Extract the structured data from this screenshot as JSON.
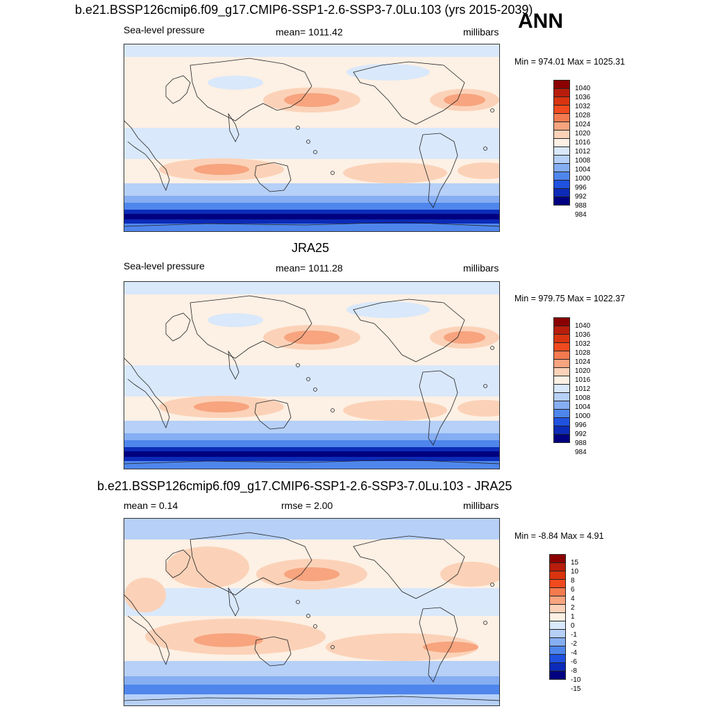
{
  "header": {
    "title": "b.e21.BSSP126cmip6.f09_g17.CMIP6-SSP1-2.6-SSP3-7.0Lu.103 (yrs 2015-2039)",
    "season": "ANN"
  },
  "panels": [
    {
      "id": "model",
      "title": "",
      "left_label": "Sea-level pressure",
      "center_label": "mean= 1011.42",
      "right_label": "millibars",
      "minmax": "Min = 974.01 Max = 1025.31",
      "levels": [
        "1040",
        "1036",
        "1032",
        "1028",
        "1024",
        "1020",
        "1016",
        "1012",
        "1008",
        "1004",
        "1000",
        "996",
        "992",
        "988",
        "984"
      ]
    },
    {
      "id": "obs",
      "title": "JRA25",
      "left_label": "Sea-level pressure",
      "center_label": "mean= 1011.28",
      "right_label": "millibars",
      "minmax": "Min = 979.75 Max = 1022.37",
      "levels": [
        "1040",
        "1036",
        "1032",
        "1028",
        "1024",
        "1020",
        "1016",
        "1012",
        "1008",
        "1004",
        "1000",
        "996",
        "992",
        "988",
        "984"
      ]
    },
    {
      "id": "diff",
      "title": "b.e21.BSSP126cmip6.f09_g17.CMIP6-SSP1-2.6-SSP3-7.0Lu.103 - JRA25",
      "left_label": "mean =   0.14",
      "center_label": "rmse =   2.00",
      "right_label": "millibars",
      "minmax": "Min =  -8.84 Max =   4.91",
      "levels": [
        "15",
        "10",
        "8",
        "6",
        "4",
        "2",
        "1",
        "0",
        "-1",
        "-2",
        "-4",
        "-6",
        "-8",
        "-10",
        "-15"
      ]
    }
  ],
  "colors": {
    "scale": [
      "#8b0000",
      "#b81d0c",
      "#d9340f",
      "#f04a1e",
      "#f47a4f",
      "#f7a47f",
      "#fbd2b8",
      "#fdf0e4",
      "#d9e8fb",
      "#b6d0f7",
      "#86aef2",
      "#4f86ec",
      "#1f52e0",
      "#0c2bb8",
      "#000080"
    ],
    "land_line": "#222222"
  }
}
